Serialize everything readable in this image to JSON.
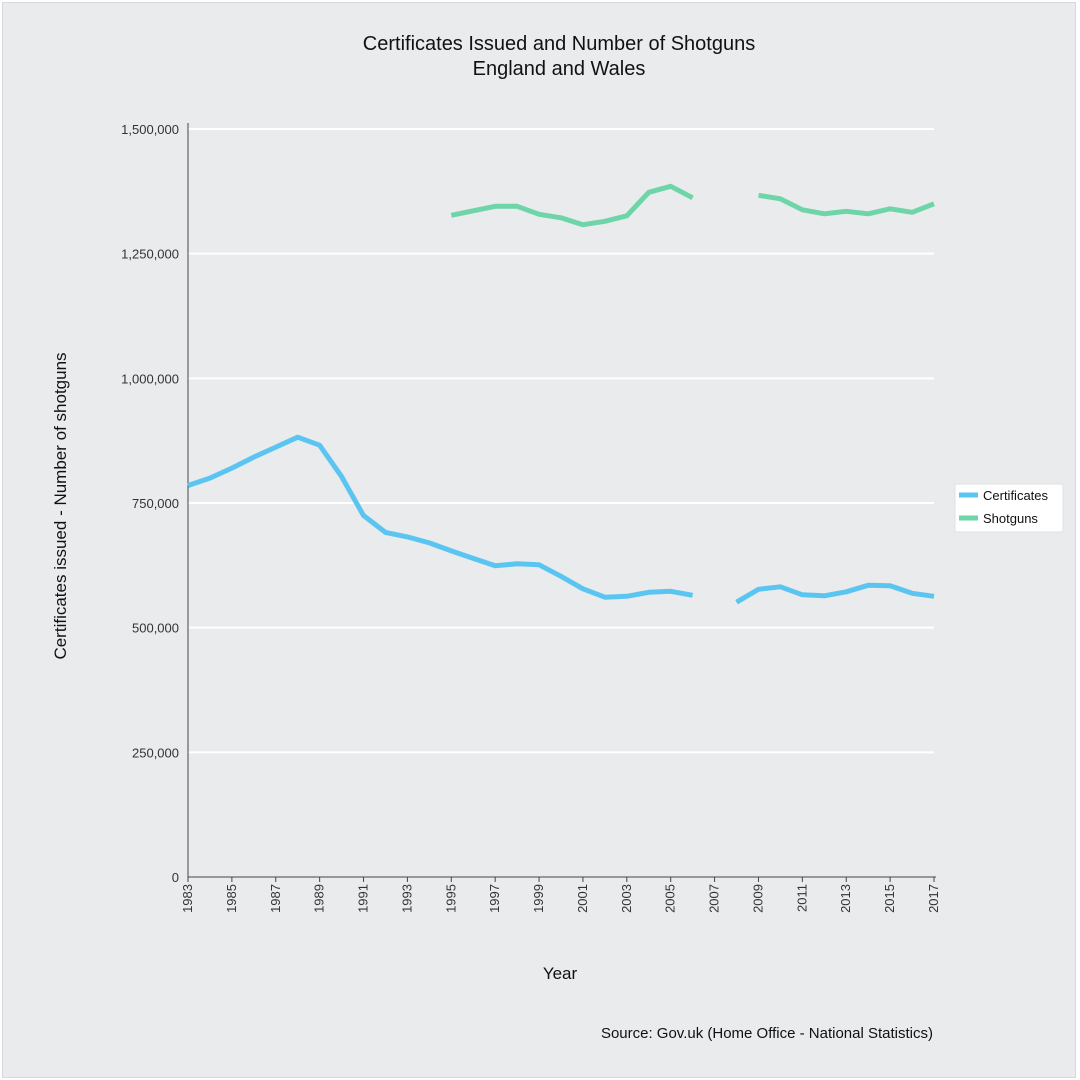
{
  "chart_data": {
    "type": "line",
    "title": "Certificates Issued and Number of Shotguns",
    "subtitle": "England and Wales",
    "xlabel": "Year",
    "ylabel": "Certificates issued - Number of shotguns",
    "ylim": [
      0,
      1500000
    ],
    "xlim": [
      1983,
      2017
    ],
    "y_ticks": [
      "0",
      "250,000",
      "500,000",
      "750,000",
      "1,000,000",
      "1,250,000",
      "1,500,000"
    ],
    "y_tick_values": [
      0,
      250000,
      500000,
      750000,
      1000000,
      1250000,
      1500000
    ],
    "x_ticks": [
      "1983",
      "1985",
      "1987",
      "1989",
      "1991",
      "1993",
      "1995",
      "1997",
      "1999",
      "2001",
      "2003",
      "2005",
      "2007",
      "2009",
      "2011",
      "2013",
      "2015",
      "2017"
    ],
    "x_tick_values": [
      1983,
      1985,
      1987,
      1989,
      1991,
      1993,
      1995,
      1997,
      1999,
      2001,
      2003,
      2005,
      2007,
      2009,
      2011,
      2013,
      2015,
      2017
    ],
    "grid": true,
    "legend_position": "right",
    "x": [
      1983,
      1984,
      1985,
      1986,
      1987,
      1988,
      1989,
      1990,
      1991,
      1992,
      1993,
      1994,
      1995,
      1996,
      1997,
      1998,
      1999,
      2000,
      2001,
      2002,
      2003,
      2004,
      2005,
      2006,
      2007,
      2008,
      2009,
      2010,
      2011,
      2012,
      2013,
      2014,
      2015,
      2016,
      2017
    ],
    "series": [
      {
        "name": "Certificates",
        "color": "#5bc5f2",
        "values": [
          785000,
          800000,
          820000,
          842000,
          862000,
          882000,
          866000,
          803000,
          725000,
          691000,
          682000,
          670000,
          654000,
          639000,
          624000,
          628000,
          626000,
          603000,
          578000,
          561000,
          563000,
          571000,
          573000,
          565000,
          null,
          551000,
          577000,
          582000,
          566000,
          564000,
          572000,
          585000,
          584000,
          569000,
          563000
        ]
      },
      {
        "name": "Shotguns",
        "color": "#6dd5a8",
        "values": [
          null,
          null,
          null,
          null,
          null,
          null,
          null,
          null,
          null,
          null,
          null,
          null,
          1327000,
          1336000,
          1345000,
          1345000,
          1329000,
          1322000,
          1308000,
          1315000,
          1326000,
          1373000,
          1385000,
          1362000,
          null,
          null,
          1367000,
          1360000,
          1338000,
          1330000,
          1335000,
          1330000,
          1340000,
          1333000,
          1350000
        ]
      }
    ],
    "source": "Source: Gov.uk (Home Office - National Statistics)"
  }
}
